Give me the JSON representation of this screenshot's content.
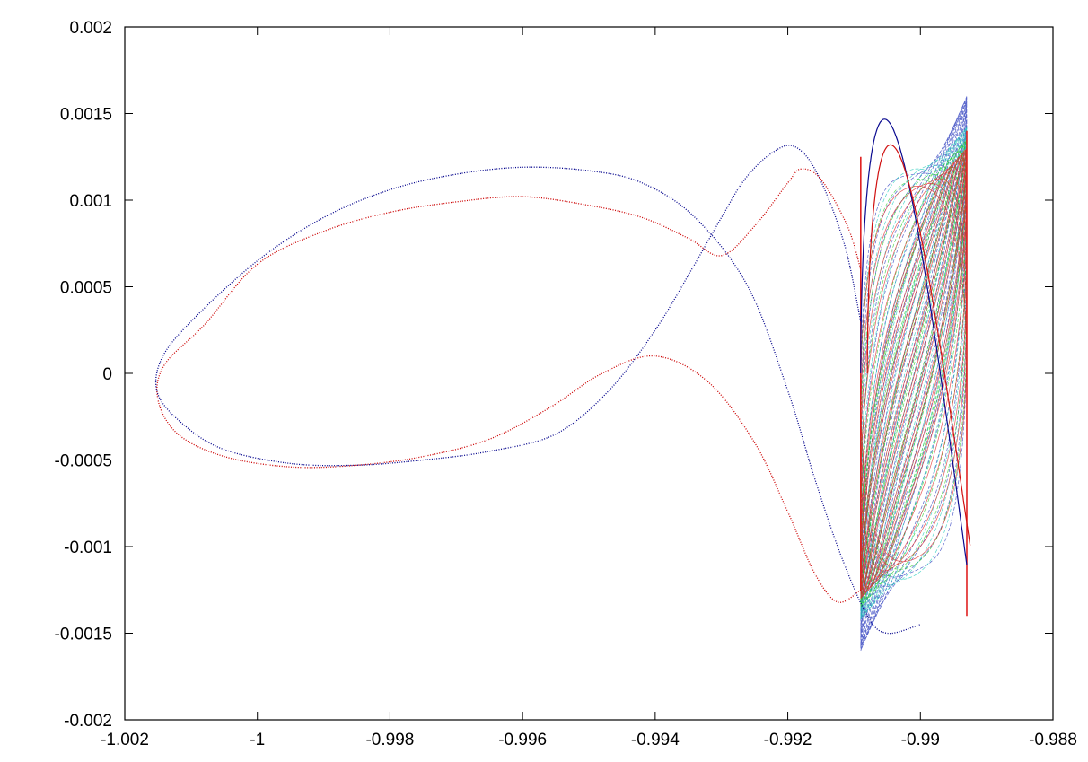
{
  "chart_data": {
    "type": "line",
    "title": "",
    "xlabel": "",
    "ylabel": "",
    "xlim": [
      -1.002,
      -0.988
    ],
    "ylim": [
      -0.002,
      0.002
    ],
    "grid": false,
    "legend": "none",
    "x_ticks": [
      {
        "value": -1.002,
        "label": "-1.002"
      },
      {
        "value": -1.0,
        "label": "-1"
      },
      {
        "value": -0.998,
        "label": "-0.998"
      },
      {
        "value": -0.996,
        "label": "-0.996"
      },
      {
        "value": -0.994,
        "label": "-0.994"
      },
      {
        "value": -0.992,
        "label": "-0.992"
      },
      {
        "value": -0.99,
        "label": "-0.99"
      },
      {
        "value": -0.988,
        "label": "-0.988"
      }
    ],
    "y_ticks": [
      {
        "value": 0.002,
        "label": "0.002"
      },
      {
        "value": 0.0015,
        "label": "0.0015"
      },
      {
        "value": 0.001,
        "label": "0.001"
      },
      {
        "value": 0.0005,
        "label": "0.0005"
      },
      {
        "value": 0.0,
        "label": "0"
      },
      {
        "value": -0.0005,
        "label": "-0.0005"
      },
      {
        "value": -0.001,
        "label": "-0.001"
      },
      {
        "value": -0.0015,
        "label": "-0.0015"
      },
      {
        "value": -0.002,
        "label": "-0.002"
      }
    ],
    "series": [
      {
        "color": "#00008b",
        "style": "dotted",
        "points": [
          [
            -0.9909,
            0.0003
          ],
          [
            -0.99115,
            0.00075
          ],
          [
            -0.99155,
            0.00115
          ],
          [
            -0.9919,
            0.00131
          ],
          [
            -0.99225,
            0.00127
          ],
          [
            -0.99265,
            0.00112
          ],
          [
            -0.993,
            0.0009
          ],
          [
            -0.99345,
            0.0006
          ],
          [
            -0.994,
            0.00025
          ],
          [
            -0.9947,
            -0.0001
          ],
          [
            -0.9955,
            -0.00035
          ],
          [
            -0.9965,
            -0.00045
          ],
          [
            -0.9975,
            -0.0005
          ],
          [
            -0.9985,
            -0.00053
          ],
          [
            -0.9995,
            -0.00052
          ],
          [
            -1.0005,
            -0.00044
          ],
          [
            -1.0011,
            -0.0003
          ],
          [
            -1.0015,
            -0.00012
          ],
          [
            -1.00145,
            8e-05
          ],
          [
            -1.001,
            0.0003
          ],
          [
            -1.0,
            0.00065
          ],
          [
            -0.999,
            0.0009
          ],
          [
            -0.998,
            0.00106
          ],
          [
            -0.997,
            0.00115
          ],
          [
            -0.996,
            0.00119
          ],
          [
            -0.995,
            0.00117
          ],
          [
            -0.9942,
            0.0011
          ],
          [
            -0.9934,
            0.0009
          ],
          [
            -0.9926,
            0.0005
          ],
          [
            -0.992,
            -0.0001
          ],
          [
            -0.9916,
            -0.0006
          ],
          [
            -0.9912,
            -0.00105
          ],
          [
            -0.9908,
            -0.0014
          ],
          [
            -0.9905,
            -0.0015
          ],
          [
            -0.99,
            -0.00145
          ]
        ]
      },
      {
        "color": "#cc0000",
        "style": "dotted",
        "points": [
          [
            -0.9909,
            -0.00125
          ],
          [
            -0.99125,
            -0.00132
          ],
          [
            -0.9916,
            -0.00115
          ],
          [
            -0.992,
            -0.0008
          ],
          [
            -0.9925,
            -0.0004
          ],
          [
            -0.9932,
            -5e-05
          ],
          [
            -0.994,
            0.0001
          ],
          [
            -0.9948,
            0.0
          ],
          [
            -0.9956,
            -0.0002
          ],
          [
            -0.9965,
            -0.00038
          ],
          [
            -0.9975,
            -0.00048
          ],
          [
            -0.9985,
            -0.00053
          ],
          [
            -0.9995,
            -0.00054
          ],
          [
            -1.0005,
            -0.00048
          ],
          [
            -1.0012,
            -0.00035
          ],
          [
            -1.0015,
            -0.00015
          ],
          [
            -1.0014,
            5e-05
          ],
          [
            -1.0008,
            0.00028
          ],
          [
            -1.0,
            0.00063
          ],
          [
            -0.999,
            0.00082
          ],
          [
            -0.998,
            0.00093
          ],
          [
            -0.997,
            0.00099
          ],
          [
            -0.996,
            0.00102
          ],
          [
            -0.995,
            0.00097
          ],
          [
            -0.9942,
            0.0009
          ],
          [
            -0.9935,
            0.00078
          ],
          [
            -0.993,
            0.00068
          ],
          [
            -0.9925,
            0.00085
          ],
          [
            -0.992,
            0.0011
          ],
          [
            -0.9918,
            0.00118
          ],
          [
            -0.9915,
            0.00112
          ],
          [
            -0.9911,
            0.00085
          ],
          [
            -0.9909,
            0.0006
          ]
        ]
      }
    ],
    "oscillation_band": {
      "x_min": -0.9909,
      "x_max": -0.9893,
      "layers": [
        {
          "color": "#2233bb",
          "style": "dashed",
          "amp_edge": 0.0016,
          "amp_mid": 0.00115,
          "cycles": 32
        },
        {
          "color": "#18c8b8",
          "style": "dashed",
          "amp_edge": 0.00142,
          "amp_mid": 0.00118,
          "cycles": 26
        },
        {
          "color": "#22cc22",
          "style": "dashed",
          "amp_edge": 0.00135,
          "amp_mid": 0.00112,
          "cycles": 22
        },
        {
          "color": "#e02020",
          "style": "solid",
          "amp_edge": 0.0013,
          "amp_mid": 0.00108,
          "cycles": 30
        }
      ],
      "loops": [
        {
          "color": "#0a0a90",
          "style": "solid",
          "x_min": -0.9909,
          "x_max": -0.9893,
          "amp": 0.00158
        },
        {
          "color": "#d01010",
          "style": "solid",
          "x_min": -0.9908,
          "x_max": -0.98925,
          "amp": 0.00142
        }
      ]
    }
  }
}
